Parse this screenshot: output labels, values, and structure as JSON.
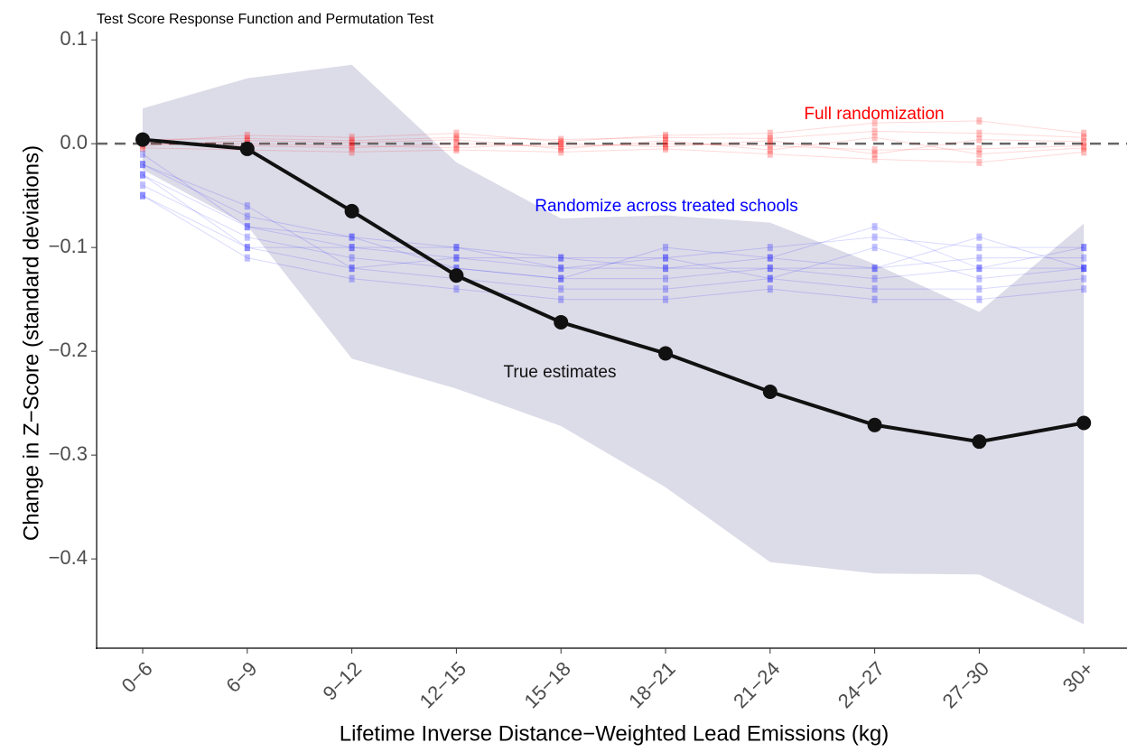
{
  "chart_data": {
    "type": "line",
    "title": "Test Score Response Function and Permutation Test",
    "x_label": "Lifetime Inverse Distance−Weighted Lead Emissions (kg)",
    "y_label": "Change in Z−Score (standard deviations)",
    "categories": [
      "0−6",
      "6−9",
      "9−12",
      "12−15",
      "15−18",
      "18−21",
      "21−24",
      "24−27",
      "27−30",
      "30+"
    ],
    "series": [
      {
        "name": "True estimates",
        "color": "#111111",
        "values": [
          0.004,
          -0.005,
          -0.065,
          -0.127,
          -0.172,
          -0.202,
          -0.239,
          -0.271,
          -0.287,
          -0.269
        ],
        "ci_upper": [
          0.034,
          0.063,
          0.076,
          -0.018,
          -0.072,
          -0.069,
          -0.076,
          -0.116,
          -0.162,
          -0.077
        ],
        "ci_lower": [
          -0.025,
          -0.079,
          -0.207,
          -0.236,
          -0.272,
          -0.331,
          -0.403,
          -0.414,
          -0.415,
          -0.463
        ],
        "band_color": "#dcdbe8"
      }
    ],
    "permutation_sets": [
      {
        "label": "Randomize across treated schools",
        "color": "#0000ff",
        "draws": [
          [
            -0.02,
            -0.07,
            -0.09,
            -0.1,
            -0.11,
            -0.11,
            -0.1,
            -0.09,
            -0.1,
            -0.1
          ],
          [
            -0.03,
            -0.08,
            -0.1,
            -0.11,
            -0.12,
            -0.12,
            -0.11,
            -0.12,
            -0.11,
            -0.11
          ],
          [
            -0.04,
            -0.09,
            -0.11,
            -0.12,
            -0.13,
            -0.13,
            -0.12,
            -0.13,
            -0.12,
            -0.12
          ],
          [
            -0.05,
            -0.1,
            -0.12,
            -0.13,
            -0.14,
            -0.14,
            -0.13,
            -0.14,
            -0.14,
            -0.13
          ],
          [
            -0.03,
            -0.1,
            -0.1,
            -0.1,
            -0.12,
            -0.11,
            -0.13,
            -0.1,
            -0.13,
            -0.12
          ],
          [
            -0.02,
            -0.06,
            -0.12,
            -0.11,
            -0.11,
            -0.12,
            -0.12,
            -0.12,
            -0.09,
            -0.12
          ],
          [
            -0.05,
            -0.11,
            -0.13,
            -0.14,
            -0.15,
            -0.15,
            -0.14,
            -0.15,
            -0.15,
            -0.14
          ],
          [
            -0.01,
            -0.08,
            -0.09,
            -0.12,
            -0.13,
            -0.1,
            -0.11,
            -0.08,
            -0.12,
            -0.1
          ]
        ]
      },
      {
        "label": "Full randomization",
        "color": "#ff0000",
        "draws": [
          [
            0.004,
            0.005,
            0.003,
            0.006,
            0.004,
            0.006,
            0.005,
            0.012,
            0.01,
            0.006
          ],
          [
            0.0,
            -0.002,
            -0.004,
            0.0,
            -0.003,
            0.0,
            -0.002,
            -0.006,
            -0.005,
            -0.002
          ],
          [
            -0.004,
            -0.006,
            -0.008,
            -0.006,
            -0.008,
            -0.005,
            -0.01,
            -0.015,
            -0.018,
            -0.008
          ],
          [
            0.002,
            0.008,
            0.006,
            0.01,
            0.002,
            0.008,
            0.01,
            0.02,
            0.022,
            0.01
          ],
          [
            0.001,
            0.0,
            -0.002,
            -0.004,
            0.0,
            -0.003,
            0.003,
            -0.01,
            0.004,
            0.002
          ],
          [
            -0.002,
            0.003,
            0.001,
            0.004,
            -0.005,
            0.003,
            -0.006,
            0.006,
            -0.01,
            -0.004
          ]
        ]
      }
    ],
    "hline": 0,
    "ylim": [
      -0.486,
      0.108
    ],
    "yticks": [
      0.1,
      {
        "value": 0,
        "label": "0.0"
      },
      {
        "value": -0.1,
        "label": "−0.1"
      },
      {
        "value": -0.2,
        "label": "−0.2"
      },
      {
        "value": -0.3,
        "label": "−0.3"
      },
      {
        "value": -0.4,
        "label": "−0.4"
      }
    ]
  }
}
